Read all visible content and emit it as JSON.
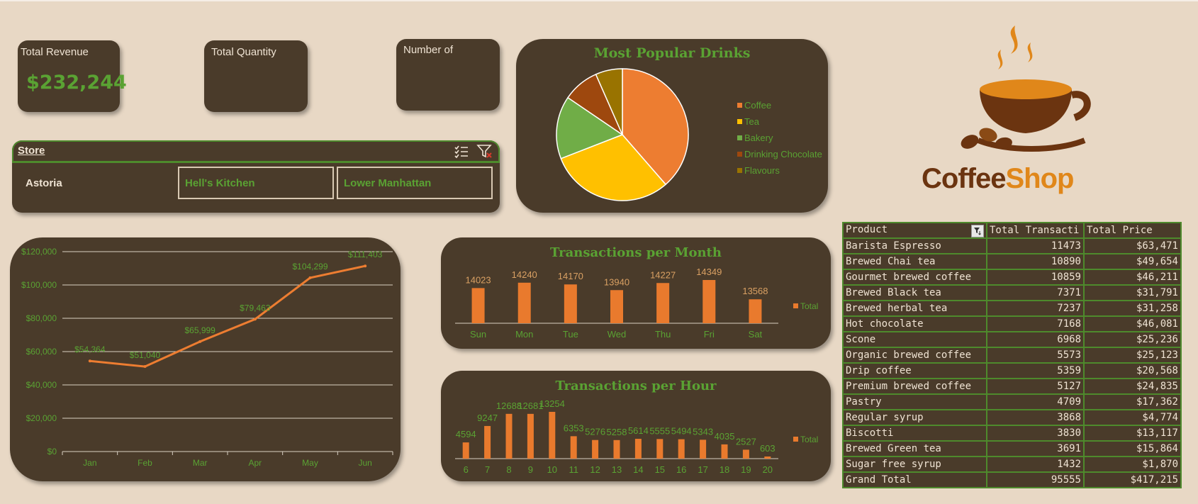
{
  "kpis": [
    {
      "label": "Total Revenue",
      "value": "$232,244"
    },
    {
      "label": "Total Quantity",
      "value": ""
    },
    {
      "label": "Number of",
      "value": ""
    }
  ],
  "store_slicer": {
    "title": "Store",
    "options": [
      {
        "label": "Astoria",
        "selected": true
      },
      {
        "label": "Hell's Kitchen",
        "selected": false
      },
      {
        "label": "Lower Manhattan",
        "selected": false
      }
    ],
    "icons": [
      "multi-select-icon",
      "clear-filter-icon"
    ]
  },
  "logo": {
    "word1": "Coffee",
    "word2": "Shop",
    "colors": {
      "coffee": "#6b3410",
      "shop": "#e0871a"
    }
  },
  "colors": {
    "card": "#4a3b2a",
    "background": "#e8d8c5",
    "accent_green": "#5aa233",
    "bar_orange": "#e97a2d"
  },
  "revenue_chart": {
    "chart_data": {
      "type": "line",
      "categories": [
        "Jan",
        "Feb",
        "Mar",
        "Apr",
        "May",
        "Jun"
      ],
      "values": [
        54364,
        51040,
        65999,
        79463,
        104299,
        111403
      ],
      "data_labels": [
        "$54,364",
        "$51,040",
        "$65,999",
        "$79,463",
        "$104,299",
        "$111,403"
      ],
      "y_ticks": [
        "$0",
        "$20,000",
        "$40,000",
        "$60,000",
        "$80,000",
        "$100,000",
        "$120,000"
      ],
      "ylim": [
        0,
        120000
      ],
      "grid": true
    }
  },
  "drinks_chart": {
    "chart_data": {
      "type": "pie",
      "title": "Most Popular Drinks",
      "categories": [
        "Coffee",
        "Tea",
        "Bakery",
        "Drinking Chocolate",
        "Flavours"
      ],
      "values": [
        38.6,
        30.5,
        15.4,
        8.9,
        6.6
      ],
      "colors": [
        "#ed7d31",
        "#ffc000",
        "#70ad47",
        "#9e480e",
        "#997300"
      ],
      "legend": "right"
    }
  },
  "month_chart": {
    "chart_data": {
      "type": "bar",
      "title": "Transactions per Month",
      "categories": [
        "Sun",
        "Mon",
        "Tue",
        "Wed",
        "Thu",
        "Fri",
        "Sat"
      ],
      "values": [
        14023,
        14240,
        14170,
        13940,
        14227,
        14349,
        13568
      ],
      "legend_entry": "Total",
      "legend": "right"
    }
  },
  "hour_chart": {
    "chart_data": {
      "type": "bar",
      "title": "Transactions per Hour",
      "categories": [
        "6",
        "7",
        "8",
        "9",
        "10",
        "11",
        "12",
        "13",
        "14",
        "15",
        "16",
        "17",
        "18",
        "19",
        "20"
      ],
      "values": [
        4594,
        9247,
        12688,
        12681,
        13254,
        6353,
        5276,
        5258,
        5614,
        5555,
        5494,
        5343,
        4035,
        2527,
        603
      ],
      "data_labels": [
        "4594",
        "9247",
        "12688",
        "12681",
        "13254",
        "6353",
        "5276",
        "5258",
        "5614",
        "5555",
        "5494",
        "5343",
        "4035",
        "2527",
        "603"
      ],
      "legend_entry": "Total",
      "legend": "right"
    }
  },
  "product_table": {
    "headers": [
      "Product",
      "Total Transacti",
      "Total Price"
    ],
    "rows": [
      [
        "Barista Espresso",
        "11473",
        "$63,471"
      ],
      [
        "Brewed Chai tea",
        "10890",
        "$49,654"
      ],
      [
        "Gourmet brewed coffee",
        "10859",
        "$46,211"
      ],
      [
        "Brewed Black tea",
        "7371",
        "$31,791"
      ],
      [
        "Brewed herbal tea",
        "7237",
        "$31,258"
      ],
      [
        "Hot chocolate",
        "7168",
        "$46,081"
      ],
      [
        "Scone",
        "6968",
        "$25,236"
      ],
      [
        "Organic brewed coffee",
        "5573",
        "$25,123"
      ],
      [
        "Drip coffee",
        "5359",
        "$20,568"
      ],
      [
        "Premium brewed coffee",
        "5127",
        "$24,835"
      ],
      [
        "Pastry",
        "4709",
        "$17,362"
      ],
      [
        "Regular syrup",
        "3868",
        "$4,774"
      ],
      [
        "Biscotti",
        "3830",
        "$13,117"
      ],
      [
        "Brewed Green tea",
        "3691",
        "$15,864"
      ],
      [
        "Sugar free syrup",
        "1432",
        "$1,870"
      ],
      [
        "Grand Total",
        "95555",
        "$417,215"
      ]
    ]
  }
}
